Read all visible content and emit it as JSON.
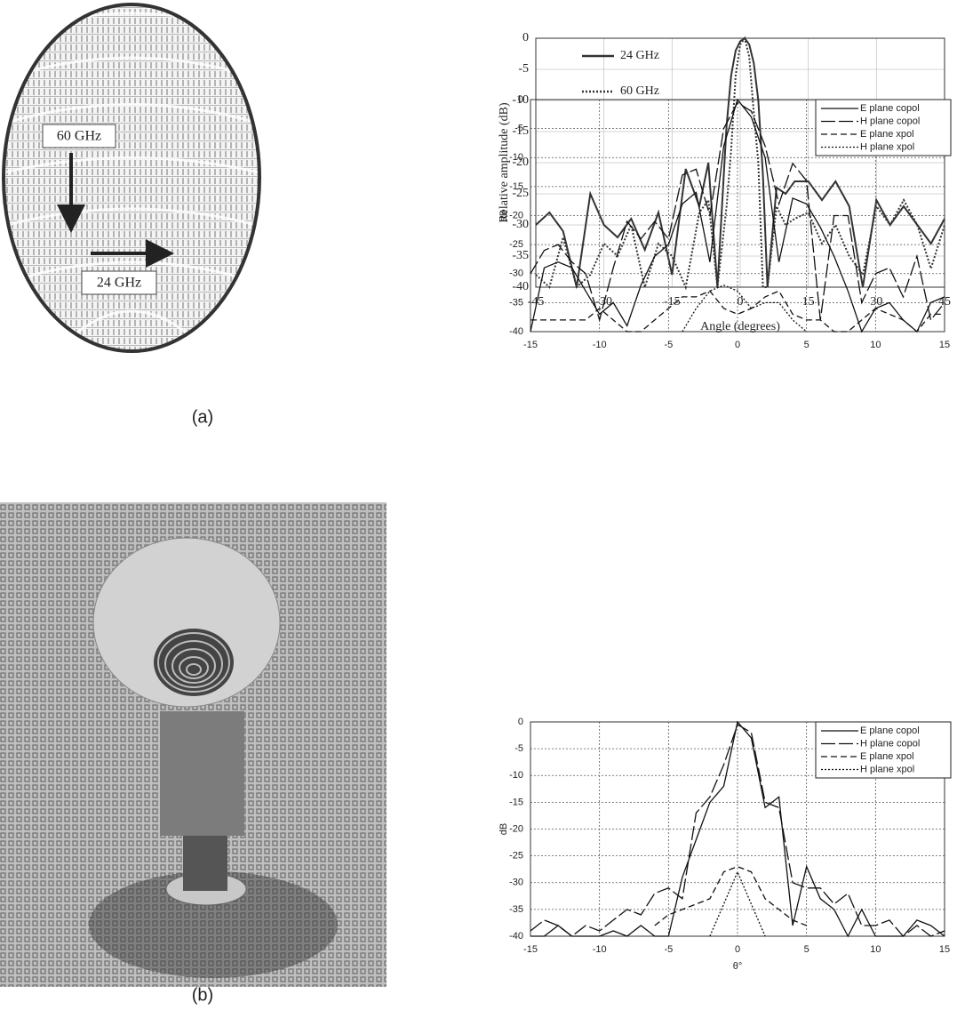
{
  "captions": [
    "(a)",
    "(b)"
  ],
  "array_image": {
    "labels": [
      "60 GHz",
      "24 GHz"
    ]
  },
  "chart_data": [
    {
      "type": "line",
      "xlabel": "Angle  (degrees)",
      "ylabel": "Relative amplitude  (dB)",
      "x": [
        -45,
        -42,
        -39,
        -36,
        -33,
        -30,
        -27,
        -24,
        -21,
        -18,
        -15,
        -12,
        -9,
        -7,
        -5,
        -3,
        -2,
        -1,
        0,
        1,
        2,
        3,
        4,
        5,
        6,
        8,
        10,
        12,
        15,
        18,
        21,
        24,
        27,
        30,
        33,
        36,
        39,
        42,
        45
      ],
      "xlim": [
        -45,
        45
      ],
      "xticks": [
        -45,
        -30,
        -15,
        0,
        15,
        30,
        45
      ],
      "ylim": [
        -40,
        0
      ],
      "yticks": [
        0,
        -5,
        -10,
        -15,
        -20,
        -25,
        -30,
        -35,
        -40
      ],
      "grid": true,
      "legend": "upper left",
      "series": [
        {
          "name": "24 GHz",
          "color": "#333333",
          "dash": "solid",
          "values": [
            -30,
            -28,
            -31,
            -40,
            -25,
            -30,
            -32,
            -29,
            -34,
            -28,
            -38,
            -21,
            -27,
            -20,
            -40,
            -14,
            -6,
            -2,
            -0.5,
            0,
            -1,
            -4,
            -10,
            -22,
            -40,
            -24,
            -25,
            -23,
            -23,
            -26,
            -23,
            -27,
            -40,
            -26,
            -30,
            -27,
            -30,
            -33,
            -29
          ]
        },
        {
          "name": "60 GHz",
          "color": "#333333",
          "dash": "dotted",
          "values": [
            -38,
            -40,
            -32,
            -40,
            -38,
            -33,
            -35,
            -30,
            -40,
            -33,
            -35,
            -40,
            -28,
            -26,
            -40,
            -27,
            -18,
            -6,
            -1,
            0,
            -3,
            -12,
            -20,
            -40,
            -40,
            -27,
            -30,
            -29,
            -28,
            -33,
            -30,
            -35,
            -38,
            -27,
            -30,
            -26,
            -30,
            -37,
            -30
          ]
        }
      ]
    },
    {
      "type": "line",
      "ylabel": "dB",
      "x": [
        -15,
        -14,
        -13,
        -12,
        -11,
        -10,
        -9,
        -8,
        -7,
        -6,
        -5,
        -4,
        -3,
        -2,
        -1,
        0,
        1,
        2,
        3,
        4,
        5,
        6,
        7,
        8,
        9,
        10,
        11,
        12,
        13,
        14,
        15
      ],
      "xlim": [
        -15,
        15
      ],
      "xticks": [
        -15,
        -10,
        -5,
        0,
        5,
        10,
        15
      ],
      "ylim": [
        -40,
        0
      ],
      "yticks": [
        0,
        -5,
        -10,
        -15,
        -20,
        -25,
        -30,
        -35,
        -40
      ],
      "grid": true,
      "legend": "upper right",
      "series": [
        {
          "name": "E plane copol",
          "color": "#111111",
          "dash": "solid",
          "values": [
            -40,
            -29,
            -28,
            -29,
            -33,
            -37,
            -35,
            -39,
            -32,
            -27,
            -25,
            -18,
            -16,
            -28,
            -8,
            0,
            -3,
            -10,
            -28,
            -17,
            -18,
            -22,
            -27,
            -33,
            -40,
            -36,
            -35,
            -38,
            -40,
            -35,
            -34
          ]
        },
        {
          "name": "H plane copol",
          "color": "#111111",
          "dash": "longdash",
          "values": [
            -30,
            -26,
            -25,
            -28,
            -30,
            -38,
            -29,
            -21,
            -24,
            -21,
            -24,
            -13,
            -12,
            -20,
            -5,
            -0.5,
            -2,
            -8,
            -18,
            -11,
            -14,
            -38,
            -20,
            -20,
            -35,
            -30,
            -29,
            -34,
            -27,
            -38,
            -35
          ]
        },
        {
          "name": "E plane xpol",
          "color": "#111111",
          "dash": "dash",
          "values": [
            -38,
            -38,
            -38,
            -38,
            -38,
            -36,
            -38,
            -40,
            -40,
            -38,
            -36,
            -34,
            -34,
            -33,
            -36,
            -37,
            -36,
            -34,
            -33,
            -37,
            -38,
            -38,
            -40,
            -40,
            -38,
            -36,
            -37,
            -38,
            -40,
            -37,
            -37
          ]
        },
        {
          "name": "H plane xpol",
          "color": "#111111",
          "dash": "dotted",
          "values": [
            null,
            null,
            null,
            null,
            null,
            null,
            null,
            null,
            null,
            null,
            null,
            -40,
            -36,
            -33,
            -32,
            -33,
            -36,
            -35,
            -35,
            -38,
            -40,
            null,
            null,
            null,
            null,
            null,
            null,
            null,
            null,
            null,
            null
          ]
        }
      ]
    },
    {
      "type": "line",
      "ylabel": "dB",
      "xlabel": "θ°",
      "x": [
        -15,
        -14,
        -13,
        -12,
        -11,
        -10,
        -9,
        -8,
        -7,
        -6,
        -5,
        -4,
        -3,
        -2,
        -1,
        0,
        1,
        2,
        3,
        4,
        5,
        6,
        7,
        8,
        9,
        10,
        11,
        12,
        13,
        14,
        15
      ],
      "xlim": [
        -15,
        15
      ],
      "xticks": [
        -15,
        -10,
        -5,
        0,
        5,
        10,
        15
      ],
      "ylim": [
        -40,
        0
      ],
      "yticks": [
        0,
        -5,
        -10,
        -15,
        -20,
        -25,
        -30,
        -35,
        -40
      ],
      "grid": true,
      "legend": "upper right",
      "series": [
        {
          "name": "E plane copol",
          "color": "#111111",
          "dash": "solid",
          "values": [
            -40,
            -40,
            -38,
            -40,
            -40,
            -40,
            -39,
            -40,
            -38,
            -40,
            -40,
            -29,
            -22,
            -15,
            -12,
            0,
            -3,
            -16,
            -14,
            -38,
            -27,
            -33,
            -35,
            -40,
            -35,
            -40,
            -40,
            -40,
            -37,
            -38,
            -40
          ]
        },
        {
          "name": "H plane copol",
          "color": "#111111",
          "dash": "longdash",
          "values": [
            -39,
            -37,
            -38,
            -40,
            -38,
            -39,
            -37,
            -35,
            -36,
            -32,
            -31,
            -33,
            -17,
            -14,
            -8,
            -0.5,
            -2,
            -15,
            -16,
            -30,
            -31,
            -31,
            -34,
            -32,
            -38,
            -38,
            -37,
            -40,
            -38,
            -40,
            -39
          ]
        },
        {
          "name": "E plane xpol",
          "color": "#111111",
          "dash": "dash",
          "values": [
            null,
            null,
            null,
            null,
            null,
            null,
            null,
            null,
            null,
            -38,
            -36,
            -35,
            -34,
            -33,
            -28,
            -27,
            -28,
            -33,
            -35,
            -37,
            -38,
            null,
            null,
            null,
            null,
            null,
            null,
            null,
            null,
            null,
            null
          ]
        },
        {
          "name": "H plane xpol",
          "color": "#111111",
          "dash": "dotted",
          "values": [
            null,
            null,
            null,
            null,
            null,
            null,
            null,
            null,
            null,
            null,
            null,
            null,
            null,
            -40,
            -34,
            -28,
            -34,
            -40,
            null,
            null,
            null,
            null,
            null,
            null,
            null,
            null,
            null,
            null,
            null,
            null,
            null
          ]
        }
      ]
    }
  ]
}
